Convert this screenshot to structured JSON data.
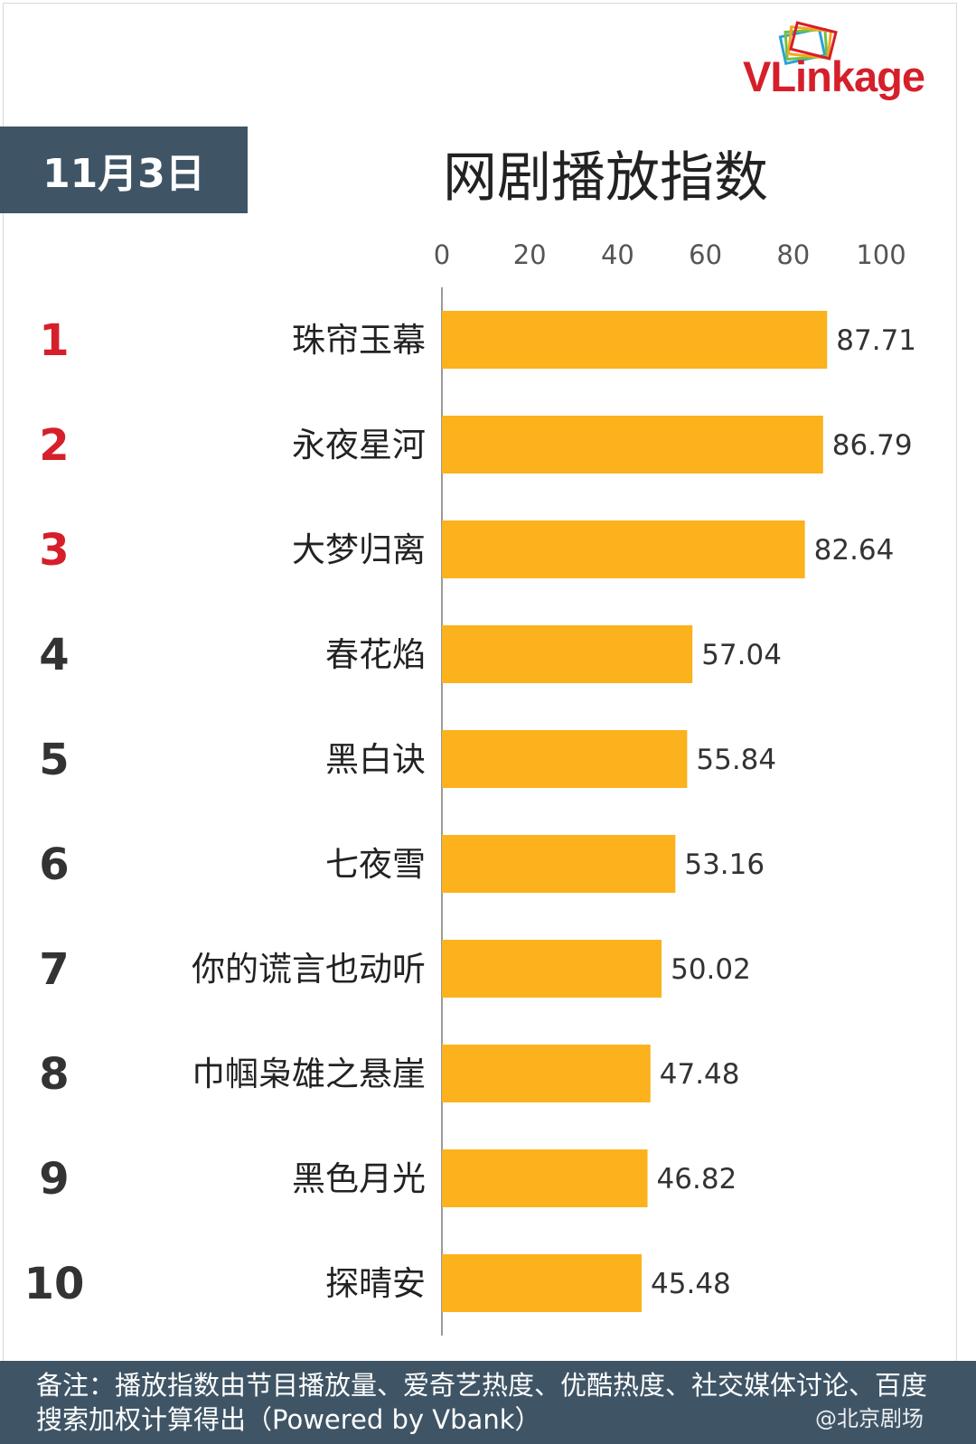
{
  "logo": {
    "text": "VLinkage"
  },
  "date": "11月3日",
  "title": "网剧播放指数",
  "footnote": "备注：播放指数由节目播放量、爱奇艺热度、优酷热度、社交媒体讨论、百度搜索加权计算得出（Powered by Vbank）",
  "watermark": "@北京剧场",
  "colors": {
    "bar": "#fbb21c",
    "header_bg": "#3f5566",
    "rank_top": "#d51f2b",
    "rank_other": "#333333",
    "brand": "#d51f2b"
  },
  "chart_data": {
    "type": "bar",
    "orientation": "horizontal",
    "title": "网剧播放指数",
    "xlim": [
      0,
      100
    ],
    "xticks": [
      0,
      20,
      40,
      60,
      80,
      100
    ],
    "ranks": [
      "1",
      "2",
      "3",
      "4",
      "5",
      "6",
      "7",
      "8",
      "9",
      "10"
    ],
    "categories": [
      "珠帘玉幕",
      "永夜星河",
      "大梦归离",
      "春花焰",
      "黑白诀",
      "七夜雪",
      "你的谎言也动听",
      "巾帼枭雄之悬崖",
      "黑色月光",
      "探晴安"
    ],
    "values": [
      87.71,
      86.79,
      82.64,
      57.04,
      55.84,
      53.16,
      50.02,
      47.48,
      46.82,
      45.48
    ],
    "value_labels": [
      "87.71",
      "86.79",
      "82.64",
      "57.04",
      "55.84",
      "53.16",
      "50.02",
      "47.48",
      "46.82",
      "45.48"
    ],
    "grid": false
  }
}
